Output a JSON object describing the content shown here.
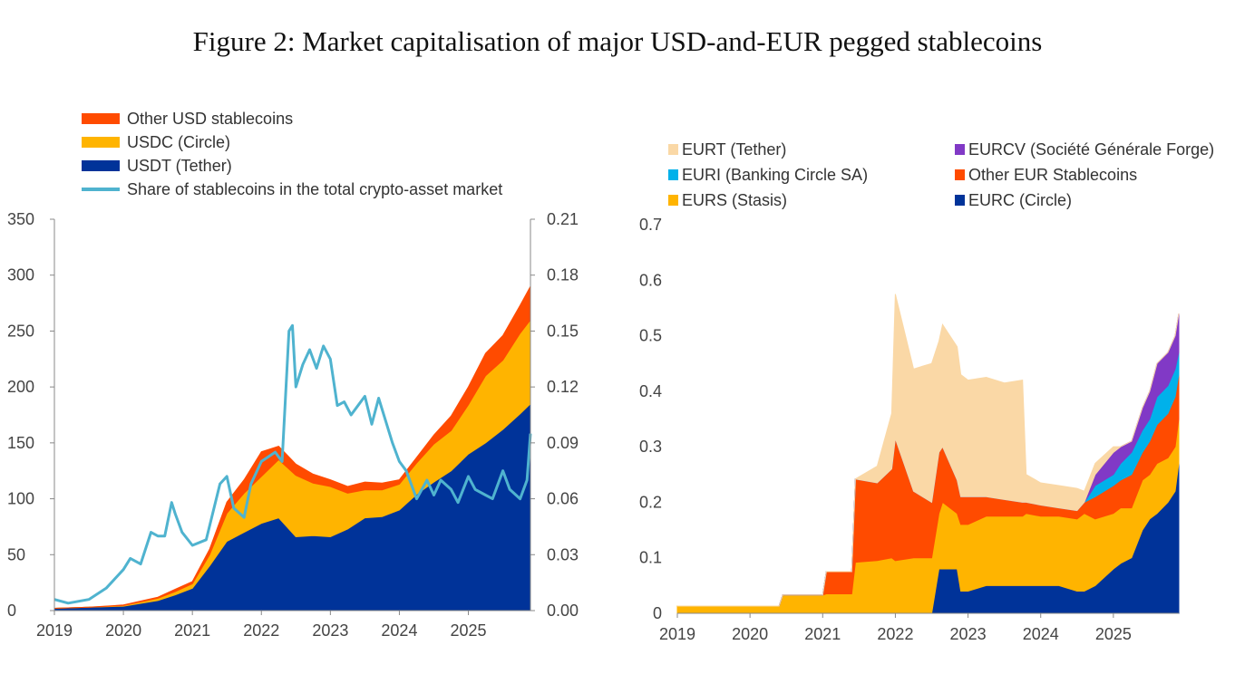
{
  "title": "Figure 2: Market capitalisation of major USD-and-EUR pegged stablecoins",
  "colors": {
    "usdt": "#003399",
    "usdc": "#ffb400",
    "other_usd": "#ff4b00",
    "share": "#4fb3cf",
    "eurc": "#003399",
    "eurs": "#ffb400",
    "other_eur": "#ff4b00",
    "euri": "#00b1ea",
    "eurcv": "#8139c6",
    "eurt": "#fad8a6"
  },
  "chart_data": [
    {
      "type": "area",
      "stacked": true,
      "x_ticks": [
        "2019",
        "2020",
        "2021",
        "2022",
        "2023",
        "2024",
        "2025"
      ],
      "ylim": [
        0,
        350
      ],
      "y_ticks": [
        "0",
        "50",
        "100",
        "150",
        "200",
        "250",
        "300",
        "350"
      ],
      "y2lim": [
        0,
        0.21
      ],
      "y2_ticks": [
        "0.00",
        "0.03",
        "0.06",
        "0.09",
        "0.12",
        "0.15",
        "0.18",
        "0.21"
      ],
      "x": [
        2019.0,
        2019.5,
        2020.0,
        2020.5,
        2020.75,
        2021.0,
        2021.25,
        2021.5,
        2021.75,
        2022.0,
        2022.25,
        2022.5,
        2022.75,
        2023.0,
        2023.25,
        2023.5,
        2023.75,
        2024.0,
        2024.25,
        2024.5,
        2024.75,
        2025.0,
        2025.25,
        2025.5,
        2025.75,
        2025.9
      ],
      "series": [
        {
          "name": "USDT (Tether)",
          "values": [
            2,
            3,
            4,
            9,
            14,
            20,
            40,
            62,
            70,
            78,
            83,
            66,
            67,
            66,
            73,
            83,
            84,
            90,
            104,
            115,
            125,
            140,
            150,
            162,
            176,
            185
          ]
        },
        {
          "name": "USDC (Circle)",
          "values": [
            0,
            0,
            0.5,
            2,
            3,
            4,
            10,
            25,
            35,
            42,
            52,
            55,
            47,
            45,
            32,
            25,
            24,
            23,
            28,
            34,
            36,
            44,
            60,
            62,
            72,
            75
          ]
        },
        {
          "name": "Other USD stablecoins",
          "values": [
            0,
            0,
            0.5,
            1,
            2,
            2,
            5,
            10,
            12,
            22,
            12,
            10,
            8,
            6,
            6,
            7,
            6,
            4,
            5,
            8,
            13,
            16,
            20,
            22,
            25,
            30
          ]
        }
      ],
      "line_series": {
        "name": "Share of stablecoins in the total crypto-asset market",
        "axis": "right",
        "x": [
          2019.0,
          2019.2,
          2019.5,
          2019.75,
          2020.0,
          2020.1,
          2020.25,
          2020.4,
          2020.5,
          2020.6,
          2020.7,
          2020.75,
          2020.85,
          2021.0,
          2021.2,
          2021.4,
          2021.5,
          2021.6,
          2021.75,
          2021.85,
          2022.0,
          2022.2,
          2022.3,
          2022.4,
          2022.45,
          2022.5,
          2022.6,
          2022.7,
          2022.8,
          2022.9,
          2023.0,
          2023.1,
          2023.2,
          2023.3,
          2023.4,
          2023.5,
          2023.6,
          2023.7,
          2023.8,
          2023.9,
          2024.0,
          2024.1,
          2024.25,
          2024.4,
          2024.5,
          2024.6,
          2024.75,
          2024.85,
          2025.0,
          2025.1,
          2025.25,
          2025.35,
          2025.5,
          2025.6,
          2025.75,
          2025.85,
          2025.9
        ],
        "values": [
          0.006,
          0.004,
          0.006,
          0.012,
          0.022,
          0.028,
          0.025,
          0.042,
          0.04,
          0.04,
          0.058,
          0.052,
          0.042,
          0.035,
          0.038,
          0.068,
          0.072,
          0.055,
          0.05,
          0.068,
          0.08,
          0.085,
          0.08,
          0.15,
          0.153,
          0.12,
          0.132,
          0.14,
          0.13,
          0.142,
          0.135,
          0.11,
          0.112,
          0.105,
          0.11,
          0.115,
          0.1,
          0.114,
          0.102,
          0.09,
          0.08,
          0.075,
          0.06,
          0.07,
          0.062,
          0.07,
          0.065,
          0.058,
          0.072,
          0.065,
          0.062,
          0.06,
          0.075,
          0.065,
          0.06,
          0.07,
          0.095
        ]
      },
      "legend": [
        "Other USD stablecoins",
        "USDC (Circle)",
        "USDT (Tether)",
        "Share of stablecoins in the total crypto-asset market"
      ]
    },
    {
      "type": "area",
      "stacked": true,
      "x_ticks": [
        "2019",
        "2020",
        "2021",
        "2022",
        "2023",
        "2024",
        "2025"
      ],
      "ylim": [
        0,
        0.7
      ],
      "y_ticks": [
        "0",
        "0.1",
        "0.2",
        "0.3",
        "0.4",
        "0.5",
        "0.6",
        "0.7"
      ],
      "x": [
        2019.0,
        2020.0,
        2020.4,
        2020.45,
        2021.0,
        2021.05,
        2021.4,
        2021.45,
        2021.75,
        2021.95,
        2022.0,
        2022.25,
        2022.5,
        2022.6,
        2022.65,
        2022.85,
        2022.9,
        2023.0,
        2023.25,
        2023.5,
        2023.75,
        2023.8,
        2024.0,
        2024.25,
        2024.5,
        2024.6,
        2024.75,
        2025.0,
        2025.1,
        2025.25,
        2025.4,
        2025.5,
        2025.6,
        2025.75,
        2025.85,
        2025.9
      ],
      "series": [
        {
          "name": "EURC (Circle)",
          "values": [
            0,
            0,
            0,
            0,
            0,
            0,
            0,
            0,
            0,
            0,
            0,
            0,
            0,
            0.08,
            0.08,
            0.08,
            0.04,
            0.04,
            0.05,
            0.05,
            0.05,
            0.05,
            0.05,
            0.05,
            0.04,
            0.04,
            0.05,
            0.08,
            0.09,
            0.1,
            0.15,
            0.17,
            0.18,
            0.2,
            0.22,
            0.27
          ]
        },
        {
          "name": "EURS (Stasis)",
          "values": [
            0.013,
            0.013,
            0.013,
            0.033,
            0.033,
            0.035,
            0.035,
            0.092,
            0.095,
            0.1,
            0.095,
            0.1,
            0.1,
            0.1,
            0.12,
            0.1,
            0.12,
            0.12,
            0.125,
            0.125,
            0.125,
            0.13,
            0.125,
            0.125,
            0.13,
            0.14,
            0.12,
            0.1,
            0.1,
            0.09,
            0.09,
            0.08,
            0.09,
            0.08,
            0.08,
            0.08
          ]
        },
        {
          "name": "Other EUR Stablecoins",
          "values": [
            0,
            0,
            0,
            0,
            0,
            0.04,
            0.04,
            0.15,
            0.14,
            0.16,
            0.22,
            0.12,
            0.1,
            0.11,
            0.1,
            0.06,
            0.05,
            0.05,
            0.035,
            0.03,
            0.025,
            0.02,
            0.02,
            0.015,
            0.015,
            0.02,
            0.04,
            0.05,
            0.05,
            0.06,
            0.05,
            0.06,
            0.07,
            0.08,
            0.09,
            0.08
          ]
        },
        {
          "name": "EURI (Banking Circle SA)",
          "values": [
            0,
            0,
            0,
            0,
            0,
            0,
            0,
            0,
            0,
            0,
            0,
            0,
            0,
            0,
            0,
            0,
            0,
            0,
            0,
            0,
            0,
            0,
            0,
            0,
            0,
            0,
            0.02,
            0.02,
            0.03,
            0.04,
            0.04,
            0.04,
            0.05,
            0.05,
            0.05,
            0.04
          ]
        },
        {
          "name": "EURCV (Société Générale Forge)",
          "values": [
            0,
            0,
            0,
            0,
            0,
            0,
            0,
            0,
            0,
            0,
            0,
            0,
            0,
            0,
            0,
            0,
            0,
            0,
            0,
            0,
            0,
            0,
            0,
            0,
            0,
            0,
            0.02,
            0.04,
            0.03,
            0.02,
            0.04,
            0.05,
            0.06,
            0.06,
            0.06,
            0.07
          ]
        },
        {
          "name": "EURT (Tether)",
          "values": [
            0,
            0,
            0,
            0,
            0,
            0,
            0,
            0,
            0.03,
            0.1,
            0.26,
            0.22,
            0.25,
            0.2,
            0.22,
            0.24,
            0.22,
            0.21,
            0.215,
            0.21,
            0.22,
            0.05,
            0.04,
            0.04,
            0.04,
            0.02,
            0.02,
            0.01,
            0,
            0,
            0,
            0,
            0,
            0,
            0,
            0
          ]
        }
      ],
      "legend": [
        "EURT (Tether)",
        "EURCV (Société Générale Forge)",
        "EURI (Banking Circle SA)",
        "Other EUR Stablecoins",
        "EURS (Stasis)",
        "EURC (Circle)"
      ]
    }
  ]
}
